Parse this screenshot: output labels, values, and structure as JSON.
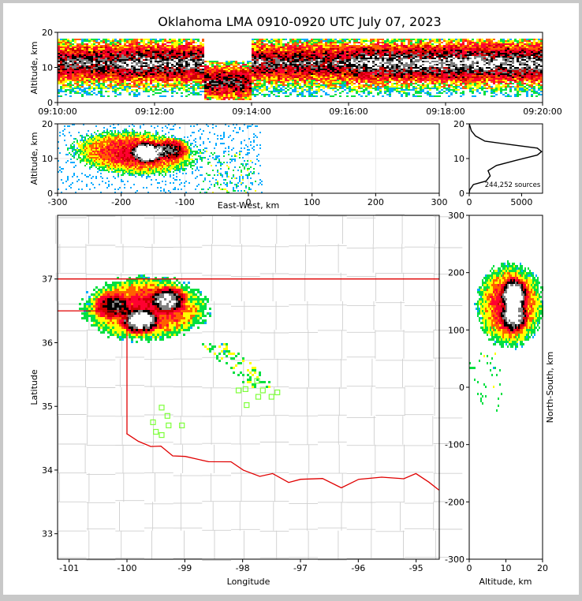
{
  "title": "Oklahoma LMA 0910-0920 UTC July 07, 2023",
  "source_count_label": "244,252 sources",
  "colors": {
    "border": "#c8c8c8",
    "background": "#ffffff",
    "state_line": "#e00000",
    "county_line": "#cfcfcf",
    "station_marker": "#7dff3a",
    "density_ramp": [
      "#ffffff",
      "#00aaff",
      "#00e040",
      "#ffff00",
      "#ff6000",
      "#ff0030",
      "#cc0000",
      "#000000",
      "#808080",
      "#ffffff"
    ]
  },
  "chart_data": [
    {
      "name": "time-height",
      "type": "heatmap",
      "xlabel": "",
      "ylabel": "Altitude, km",
      "xlim": [
        "09:10:00",
        "09:20:00"
      ],
      "xticks": [
        "09:10:00",
        "09:12:00",
        "09:14:00",
        "09:16:00",
        "09:18:00",
        "09:20:00"
      ],
      "ylim": [
        0,
        20
      ],
      "yticks": [
        0,
        10,
        20
      ],
      "bands": [
        {
          "t0": 0.0,
          "t1": 1.0,
          "z0": 3,
          "z1": 17,
          "core0": 9,
          "core1": 14
        },
        {
          "t0": 3.0,
          "t1": 4.0,
          "z0": 2,
          "z1": 12,
          "core0": 4,
          "core1": 8
        }
      ]
    },
    {
      "name": "east-west-altitude",
      "type": "heatmap",
      "xlabel": "East-West, km",
      "ylabel": "Altitude, km",
      "xlim": [
        -300,
        300
      ],
      "xticks": [
        -300,
        -200,
        -100,
        0,
        100,
        200,
        300
      ],
      "ylim": [
        0,
        20
      ],
      "yticks": [
        0,
        10,
        20
      ],
      "cores": [
        {
          "x": -160,
          "z": 12,
          "strength": 1.0
        },
        {
          "x": -120,
          "z": 13,
          "strength": 0.7
        }
      ]
    },
    {
      "name": "altitude-histogram",
      "type": "line",
      "xlabel": "",
      "ylabel": "",
      "xlim": [
        0,
        7000
      ],
      "xticks": [
        0,
        5000
      ],
      "ylim": [
        0,
        20
      ],
      "yticks": [
        0,
        10,
        20
      ],
      "x": [
        0,
        50,
        400,
        1600,
        2000,
        1800,
        2600,
        4500,
        6500,
        6900,
        6500,
        4000,
        1500,
        600,
        200,
        50,
        0
      ],
      "y": [
        0,
        1,
        2.5,
        3.5,
        5,
        6.5,
        8,
        9.5,
        11,
        12,
        13,
        14,
        15,
        16.5,
        18,
        19.5,
        20
      ]
    },
    {
      "name": "plan-view",
      "type": "heatmap",
      "xlabel": "Longitude",
      "ylabel": "Latitude",
      "xlim": [
        -101.2,
        -94.6
      ],
      "xticks": [
        -101,
        -100,
        -99,
        -98,
        -97,
        -96,
        -95
      ],
      "ylim": [
        32.6,
        38.0
      ],
      "yticks": [
        33,
        34,
        35,
        36,
        37
      ],
      "cores": [
        {
          "lon": -99.8,
          "lat": 36.35,
          "strength": 1.0
        },
        {
          "lon": -99.3,
          "lat": 36.7,
          "strength": 0.85
        },
        {
          "lon": -100.3,
          "lat": 36.6,
          "strength": 0.6
        }
      ],
      "stations": [
        {
          "lon": -99.4,
          "lat": 34.98
        },
        {
          "lon": -99.3,
          "lat": 34.85
        },
        {
          "lon": -99.55,
          "lat": 34.75
        },
        {
          "lon": -99.28,
          "lat": 34.7
        },
        {
          "lon": -99.05,
          "lat": 34.7
        },
        {
          "lon": -99.5,
          "lat": 34.6
        },
        {
          "lon": -99.4,
          "lat": 34.55
        },
        {
          "lon": -98.07,
          "lat": 35.25
        },
        {
          "lon": -97.95,
          "lat": 35.27
        },
        {
          "lon": -97.75,
          "lat": 35.4
        },
        {
          "lon": -97.65,
          "lat": 35.25
        },
        {
          "lon": -97.73,
          "lat": 35.15
        },
        {
          "lon": -97.5,
          "lat": 35.15
        },
        {
          "lon": -97.4,
          "lat": 35.22
        },
        {
          "lon": -97.93,
          "lat": 35.02
        }
      ]
    },
    {
      "name": "altitude-north-south",
      "type": "heatmap",
      "xlabel": "Altitude, km",
      "ylabel": "North-South, km",
      "xlim": [
        0,
        20
      ],
      "xticks": [
        0,
        10,
        20
      ],
      "ylim": [
        -300,
        300
      ],
      "yticks": [
        -300,
        -200,
        -100,
        0,
        100,
        200,
        300
      ],
      "cores": [
        {
          "z": 12,
          "y": 165,
          "strength": 1.0
        },
        {
          "z": 12,
          "y": 125,
          "strength": 0.9
        }
      ]
    }
  ]
}
